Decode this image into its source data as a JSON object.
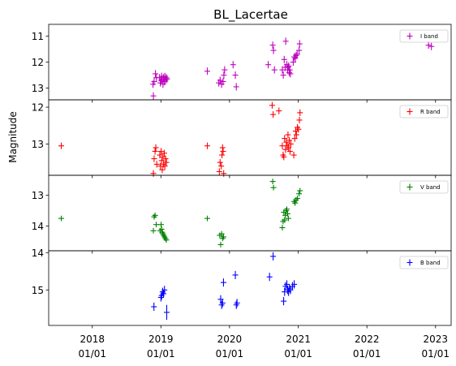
{
  "chart_data": {
    "type": "scatter",
    "title": "BL_Lacertae",
    "ylabel": "Magnitude",
    "xlabel": "",
    "x_ticks": [
      {
        "date": "2018-01-01",
        "line1": "2018",
        "line2": "01/01"
      },
      {
        "date": "2019-01-01",
        "line1": "2019",
        "line2": "01/01"
      },
      {
        "date": "2020-01-01",
        "line1": "2020",
        "line2": "01/01"
      },
      {
        "date": "2021-01-01",
        "line1": "2021",
        "line2": "01/01"
      },
      {
        "date": "2022-01-01",
        "line1": "2022",
        "line2": "01/01"
      },
      {
        "date": "2023-01-01",
        "line1": "2023",
        "line2": "01/01"
      }
    ],
    "xlim": [
      "2017-05-14",
      "2023-03-25"
    ],
    "shared_x": true,
    "y_inverted": true,
    "panels": [
      {
        "name": "I band",
        "color": "#bf00bf",
        "ylim": [
          13.45,
          10.55
        ],
        "yticks": [
          11,
          12,
          13
        ],
        "legend_loc": "upper right",
        "points": [
          {
            "x": "2018-11-20",
            "y": 12.85,
            "err": 0.14
          },
          {
            "x": "2018-11-22",
            "y": 13.3,
            "err": 0.14
          },
          {
            "x": "2018-11-26",
            "y": 12.75,
            "err": 0.14
          },
          {
            "x": "2018-12-03",
            "y": 12.45,
            "err": 0.14
          },
          {
            "x": "2018-12-08",
            "y": 12.6,
            "err": 0.14
          },
          {
            "x": "2018-12-25",
            "y": 12.6,
            "err": 0.14
          },
          {
            "x": "2018-12-29",
            "y": 12.8,
            "err": 0.14
          },
          {
            "x": "2019-01-02",
            "y": 12.7,
            "err": 0.14
          },
          {
            "x": "2019-01-05",
            "y": 12.55,
            "err": 0.14
          },
          {
            "x": "2019-01-08",
            "y": 12.65,
            "err": 0.14
          },
          {
            "x": "2019-01-12",
            "y": 12.85,
            "err": 0.14
          },
          {
            "x": "2019-01-15",
            "y": 12.6,
            "err": 0.14
          },
          {
            "x": "2019-01-19",
            "y": 12.75,
            "err": 0.14
          },
          {
            "x": "2019-01-22",
            "y": 12.55,
            "err": 0.14
          },
          {
            "x": "2019-01-26",
            "y": 12.7,
            "err": 0.14
          },
          {
            "x": "2019-01-30",
            "y": 12.6,
            "err": 0.14
          },
          {
            "x": "2019-02-03",
            "y": 12.65,
            "err": 0.14
          },
          {
            "x": "2019-09-05",
            "y": 12.35,
            "err": 0.14
          },
          {
            "x": "2019-11-05",
            "y": 12.8,
            "err": 0.14
          },
          {
            "x": "2019-11-12",
            "y": 12.7,
            "err": 0.14
          },
          {
            "x": "2019-11-20",
            "y": 12.85,
            "err": 0.14
          },
          {
            "x": "2019-11-28",
            "y": 12.75,
            "err": 0.14
          },
          {
            "x": "2019-12-02",
            "y": 12.5,
            "err": 0.14
          },
          {
            "x": "2019-12-06",
            "y": 12.3,
            "err": 0.14
          },
          {
            "x": "2020-01-20",
            "y": 12.1,
            "err": 0.14
          },
          {
            "x": "2020-02-01",
            "y": 12.5,
            "err": 0.14
          },
          {
            "x": "2020-02-06",
            "y": 12.95,
            "err": 0.14
          },
          {
            "x": "2020-07-25",
            "y": 12.1,
            "err": 0.14
          },
          {
            "x": "2020-08-18",
            "y": 11.35,
            "err": 0.14
          },
          {
            "x": "2020-08-22",
            "y": 11.55,
            "err": 0.14
          },
          {
            "x": "2020-08-27",
            "y": 12.3,
            "err": 0.14
          },
          {
            "x": "2020-10-08",
            "y": 12.3,
            "err": 0.14
          },
          {
            "x": "2020-10-13",
            "y": 12.5,
            "err": 0.14
          },
          {
            "x": "2020-10-18",
            "y": 11.9,
            "err": 0.14
          },
          {
            "x": "2020-10-23",
            "y": 12.2,
            "err": 0.14
          },
          {
            "x": "2020-10-26",
            "y": 11.2,
            "err": 0.14
          },
          {
            "x": "2020-11-01",
            "y": 12.1,
            "err": 0.14
          },
          {
            "x": "2020-11-05",
            "y": 12.3,
            "err": 0.14
          },
          {
            "x": "2020-11-08",
            "y": 12.2,
            "err": 0.14
          },
          {
            "x": "2020-11-11",
            "y": 12.15,
            "err": 0.14
          },
          {
            "x": "2020-11-14",
            "y": 12.4,
            "err": 0.14
          },
          {
            "x": "2020-11-17",
            "y": 12.3,
            "err": 0.14
          },
          {
            "x": "2020-11-20",
            "y": 12.45,
            "err": 0.14
          },
          {
            "x": "2020-12-05",
            "y": 12.0,
            "err": 0.14
          },
          {
            "x": "2020-12-10",
            "y": 11.8,
            "err": 0.14
          },
          {
            "x": "2020-12-16",
            "y": 11.85,
            "err": 0.14
          },
          {
            "x": "2020-12-20",
            "y": 11.75,
            "err": 0.14
          },
          {
            "x": "2020-12-26",
            "y": 11.7,
            "err": 0.14
          },
          {
            "x": "2021-01-05",
            "y": 11.55,
            "err": 0.14
          },
          {
            "x": "2021-01-08",
            "y": 11.3,
            "err": 0.14
          },
          {
            "x": "2022-11-25",
            "y": 11.35,
            "err": 0.14
          },
          {
            "x": "2022-12-10",
            "y": 11.4,
            "err": 0.14
          }
        ]
      },
      {
        "name": "R band",
        "color": "#ff0000",
        "ylim": [
          13.85,
          11.8
        ],
        "yticks": [
          12,
          13
        ],
        "legend_loc": "upper right",
        "points": [
          {
            "x": "2017-07-20",
            "y": 13.05,
            "err": 0.09
          },
          {
            "x": "2018-11-22",
            "y": 13.8,
            "err": 0.09
          },
          {
            "x": "2018-11-26",
            "y": 13.4,
            "err": 0.09
          },
          {
            "x": "2018-12-01",
            "y": 13.2,
            "err": 0.09
          },
          {
            "x": "2018-12-05",
            "y": 13.1,
            "err": 0.09
          },
          {
            "x": "2018-12-10",
            "y": 13.55,
            "err": 0.09
          },
          {
            "x": "2018-12-26",
            "y": 13.3,
            "err": 0.09
          },
          {
            "x": "2018-12-29",
            "y": 13.6,
            "err": 0.09
          },
          {
            "x": "2019-01-02",
            "y": 13.2,
            "err": 0.09
          },
          {
            "x": "2019-01-05",
            "y": 13.45,
            "err": 0.09
          },
          {
            "x": "2019-01-08",
            "y": 13.7,
            "err": 0.09
          },
          {
            "x": "2019-01-12",
            "y": 13.35,
            "err": 0.09
          },
          {
            "x": "2019-01-15",
            "y": 13.55,
            "err": 0.09
          },
          {
            "x": "2019-01-19",
            "y": 13.25,
            "err": 0.09
          },
          {
            "x": "2019-01-22",
            "y": 13.6,
            "err": 0.09
          },
          {
            "x": "2019-01-26",
            "y": 13.4,
            "err": 0.09
          },
          {
            "x": "2019-01-30",
            "y": 13.5,
            "err": 0.09
          },
          {
            "x": "2019-09-05",
            "y": 13.05,
            "err": 0.09
          },
          {
            "x": "2019-11-08",
            "y": 13.75,
            "err": 0.09
          },
          {
            "x": "2019-11-12",
            "y": 13.5,
            "err": 0.09
          },
          {
            "x": "2019-11-18",
            "y": 13.6,
            "err": 0.09
          },
          {
            "x": "2019-11-22",
            "y": 13.3,
            "err": 0.09
          },
          {
            "x": "2019-11-25",
            "y": 13.1,
            "err": 0.09
          },
          {
            "x": "2019-11-28",
            "y": 13.2,
            "err": 0.09
          },
          {
            "x": "2019-12-01",
            "y": 13.8,
            "err": 0.09
          },
          {
            "x": "2020-08-15",
            "y": 11.95,
            "err": 0.09
          },
          {
            "x": "2020-08-20",
            "y": 12.2,
            "err": 0.09
          },
          {
            "x": "2020-09-20",
            "y": 12.1,
            "err": 0.09
          },
          {
            "x": "2020-10-08",
            "y": 13.05,
            "err": 0.09
          },
          {
            "x": "2020-10-12",
            "y": 13.3,
            "err": 0.09
          },
          {
            "x": "2020-10-16",
            "y": 13.35,
            "err": 0.09
          },
          {
            "x": "2020-10-20",
            "y": 12.85,
            "err": 0.09
          },
          {
            "x": "2020-10-25",
            "y": 13.15,
            "err": 0.09
          },
          {
            "x": "2020-10-29",
            "y": 12.95,
            "err": 0.09
          },
          {
            "x": "2020-11-03",
            "y": 13.05,
            "err": 0.09
          },
          {
            "x": "2020-11-07",
            "y": 12.75,
            "err": 0.09
          },
          {
            "x": "2020-11-10",
            "y": 13.1,
            "err": 0.09
          },
          {
            "x": "2020-11-14",
            "y": 12.9,
            "err": 0.09
          },
          {
            "x": "2020-11-18",
            "y": 13.2,
            "err": 0.09
          },
          {
            "x": "2020-11-22",
            "y": 13.0,
            "err": 0.09
          },
          {
            "x": "2020-12-08",
            "y": 13.3,
            "err": 0.09
          },
          {
            "x": "2020-12-13",
            "y": 12.85,
            "err": 0.09
          },
          {
            "x": "2020-12-18",
            "y": 12.65,
            "err": 0.09
          },
          {
            "x": "2020-12-22",
            "y": 12.75,
            "err": 0.09
          },
          {
            "x": "2020-12-27",
            "y": 12.55,
            "err": 0.09
          },
          {
            "x": "2021-01-02",
            "y": 12.6,
            "err": 0.09
          },
          {
            "x": "2021-01-07",
            "y": 12.35,
            "err": 0.09
          },
          {
            "x": "2021-01-10",
            "y": 12.15,
            "err": 0.09
          }
        ]
      },
      {
        "name": "V band",
        "color": "#008000",
        "ylim": [
          14.8,
          12.35
        ],
        "yticks": [
          13,
          14
        ],
        "legend_loc": "upper right",
        "points": [
          {
            "x": "2017-07-20",
            "y": 13.75,
            "err": 0.09
          },
          {
            "x": "2018-11-22",
            "y": 14.15,
            "err": 0.09
          },
          {
            "x": "2018-11-26",
            "y": 13.7,
            "err": 0.09
          },
          {
            "x": "2018-12-01",
            "y": 13.65,
            "err": 0.09
          },
          {
            "x": "2018-12-07",
            "y": 13.95,
            "err": 0.09
          },
          {
            "x": "2018-12-28",
            "y": 14.15,
            "err": 0.09
          },
          {
            "x": "2019-01-02",
            "y": 13.95,
            "err": 0.09
          },
          {
            "x": "2019-01-05",
            "y": 14.1,
            "err": 0.09
          },
          {
            "x": "2019-01-08",
            "y": 14.2,
            "err": 0.09
          },
          {
            "x": "2019-01-12",
            "y": 14.25,
            "err": 0.09
          },
          {
            "x": "2019-01-16",
            "y": 14.3,
            "err": 0.09
          },
          {
            "x": "2019-01-20",
            "y": 14.35,
            "err": 0.09
          },
          {
            "x": "2019-01-25",
            "y": 14.4,
            "err": 0.09
          },
          {
            "x": "2019-01-30",
            "y": 14.45,
            "err": 0.09
          },
          {
            "x": "2019-09-05",
            "y": 13.75,
            "err": 0.09
          },
          {
            "x": "2019-11-10",
            "y": 14.3,
            "err": 0.09
          },
          {
            "x": "2019-11-15",
            "y": 14.6,
            "err": 0.09
          },
          {
            "x": "2019-11-20",
            "y": 14.25,
            "err": 0.09
          },
          {
            "x": "2019-11-25",
            "y": 14.4,
            "err": 0.09
          },
          {
            "x": "2019-11-30",
            "y": 14.35,
            "err": 0.09
          },
          {
            "x": "2020-08-18",
            "y": 12.55,
            "err": 0.09
          },
          {
            "x": "2020-08-22",
            "y": 12.75,
            "err": 0.09
          },
          {
            "x": "2020-10-08",
            "y": 14.05,
            "err": 0.09
          },
          {
            "x": "2020-10-12",
            "y": 13.85,
            "err": 0.09
          },
          {
            "x": "2020-10-16",
            "y": 13.55,
            "err": 0.09
          },
          {
            "x": "2020-10-20",
            "y": 13.8,
            "err": 0.09
          },
          {
            "x": "2020-10-24",
            "y": 13.65,
            "err": 0.09
          },
          {
            "x": "2020-10-28",
            "y": 13.5,
            "err": 0.09
          },
          {
            "x": "2020-11-01",
            "y": 13.45,
            "err": 0.09
          },
          {
            "x": "2020-11-05",
            "y": 13.6,
            "err": 0.09
          },
          {
            "x": "2020-11-09",
            "y": 13.75,
            "err": 0.09
          },
          {
            "x": "2020-12-10",
            "y": 13.2,
            "err": 0.09
          },
          {
            "x": "2020-12-15",
            "y": 13.25,
            "err": 0.09
          },
          {
            "x": "2020-12-20",
            "y": 13.15,
            "err": 0.09
          },
          {
            "x": "2020-12-27",
            "y": 13.1,
            "err": 0.09
          },
          {
            "x": "2021-01-05",
            "y": 12.95,
            "err": 0.09
          },
          {
            "x": "2021-01-10",
            "y": 12.85,
            "err": 0.09
          }
        ]
      },
      {
        "name": "B band",
        "color": "#0000ff",
        "ylim": [
          15.95,
          13.95
        ],
        "yticks": [
          14,
          15
        ],
        "legend_loc": "upper right",
        "points": [
          {
            "x": "2018-11-25",
            "y": 15.45,
            "err": 0.11
          },
          {
            "x": "2019-01-01",
            "y": 15.2,
            "err": 0.11
          },
          {
            "x": "2019-01-05",
            "y": 15.15,
            "err": 0.11
          },
          {
            "x": "2019-01-10",
            "y": 15.05,
            "err": 0.11
          },
          {
            "x": "2019-01-15",
            "y": 15.1,
            "err": 0.11
          },
          {
            "x": "2019-01-20",
            "y": 15.0,
            "err": 0.11
          },
          {
            "x": "2019-02-01",
            "y": 15.6,
            "err": 0.2
          },
          {
            "x": "2019-11-15",
            "y": 15.25,
            "err": 0.11
          },
          {
            "x": "2019-11-20",
            "y": 15.4,
            "err": 0.11
          },
          {
            "x": "2019-11-25",
            "y": 15.35,
            "err": 0.11
          },
          {
            "x": "2019-11-30",
            "y": 14.8,
            "err": 0.11
          },
          {
            "x": "2020-02-01",
            "y": 14.6,
            "err": 0.11
          },
          {
            "x": "2020-02-06",
            "y": 15.4,
            "err": 0.11
          },
          {
            "x": "2020-02-10",
            "y": 15.35,
            "err": 0.11
          },
          {
            "x": "2020-08-01",
            "y": 14.65,
            "err": 0.11
          },
          {
            "x": "2020-08-20",
            "y": 14.1,
            "err": 0.11
          },
          {
            "x": "2020-10-15",
            "y": 15.3,
            "err": 0.11
          },
          {
            "x": "2020-10-20",
            "y": 15.05,
            "err": 0.11
          },
          {
            "x": "2020-10-25",
            "y": 14.9,
            "err": 0.11
          },
          {
            "x": "2020-11-01",
            "y": 14.85,
            "err": 0.11
          },
          {
            "x": "2020-11-05",
            "y": 15.0,
            "err": 0.11
          },
          {
            "x": "2020-11-10",
            "y": 15.05,
            "err": 0.11
          },
          {
            "x": "2020-11-15",
            "y": 14.95,
            "err": 0.11
          },
          {
            "x": "2020-11-20",
            "y": 15.0,
            "err": 0.11
          },
          {
            "x": "2020-12-01",
            "y": 14.9,
            "err": 0.11
          },
          {
            "x": "2020-12-10",
            "y": 14.85,
            "err": 0.11
          }
        ]
      }
    ]
  }
}
